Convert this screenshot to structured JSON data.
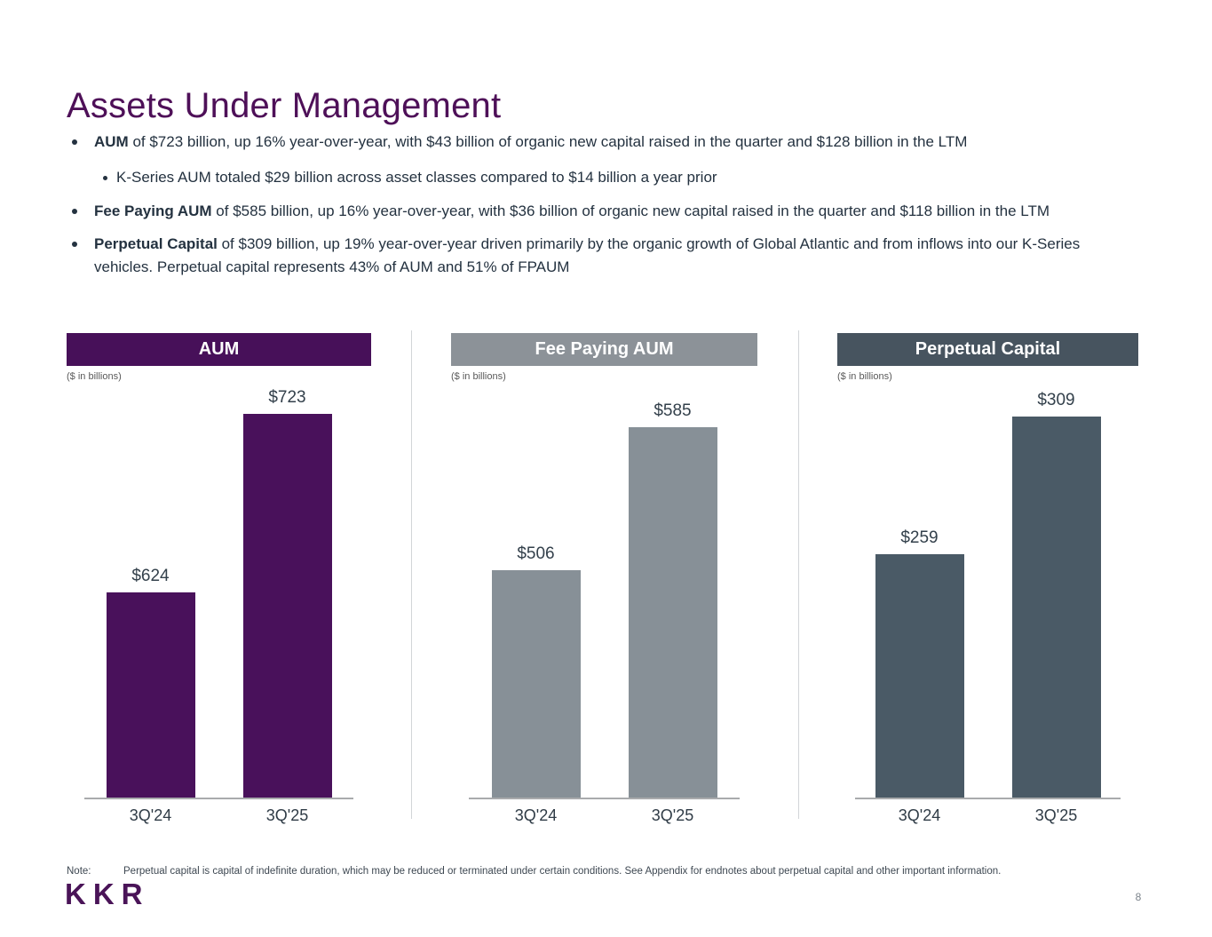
{
  "title": "Assets Under Management",
  "bullets": [
    {
      "bold": "AUM",
      "rest": " of $723 billion, up 16% year-over-year, with $43 billion of organic new capital raised in the quarter and $128 billion in the LTM",
      "sub": "K-Series AUM totaled $29 billion across asset classes compared to $14 billion a year prior"
    },
    {
      "bold": "Fee Paying AUM",
      "rest": " of $585 billion, up 16% year-over-year, with $36 billion of organic new capital raised in the quarter and $118 billion in the LTM"
    },
    {
      "bold": "Perpetual Capital",
      "rest": " of $309 billion, up 19% year-over-year driven primarily by the organic growth of Global Atlantic and from inflows into our K-Series vehicles. Perpetual capital represents 43% of AUM and 51% of FPAUM"
    }
  ],
  "chart_data": [
    {
      "type": "bar",
      "title": "AUM",
      "units_label": "($ in billions)",
      "categories": [
        "3Q'24",
        "3Q'25"
      ],
      "values": [
        624,
        723
      ],
      "value_labels": [
        "$624",
        "$723"
      ],
      "header_color": "#471059",
      "bar_color": "#49115B",
      "ylim": [
        510,
        734
      ],
      "grid": false,
      "legend": "none"
    },
    {
      "type": "bar",
      "title": "Fee Paying AUM",
      "units_label": "($ in billions)",
      "categories": [
        "3Q'24",
        "3Q'25"
      ],
      "values": [
        506,
        585
      ],
      "value_labels": [
        "$506",
        "$585"
      ],
      "header_color": "#8C9298",
      "bar_color": "#879097",
      "ylim": [
        380,
        603
      ],
      "grid": false,
      "legend": "none"
    },
    {
      "type": "bar",
      "title": "Perpetual Capital",
      "units_label": "($ in billions)",
      "categories": [
        "3Q'24",
        "3Q'25"
      ],
      "values": [
        259,
        309
      ],
      "value_labels": [
        "$259",
        "$309"
      ],
      "header_color": "#47545F",
      "bar_color": "#4A5A66",
      "ylim": [
        170,
        317
      ],
      "grid": false,
      "legend": "none"
    }
  ],
  "note": {
    "label": "Note:",
    "text": "Perpetual capital is capital of indefinite duration, which may be reduced or terminated under certain conditions. See Appendix for endnotes about perpetual capital and other important information."
  },
  "footer": {
    "logo_text": "KKR",
    "page_number": "8"
  }
}
